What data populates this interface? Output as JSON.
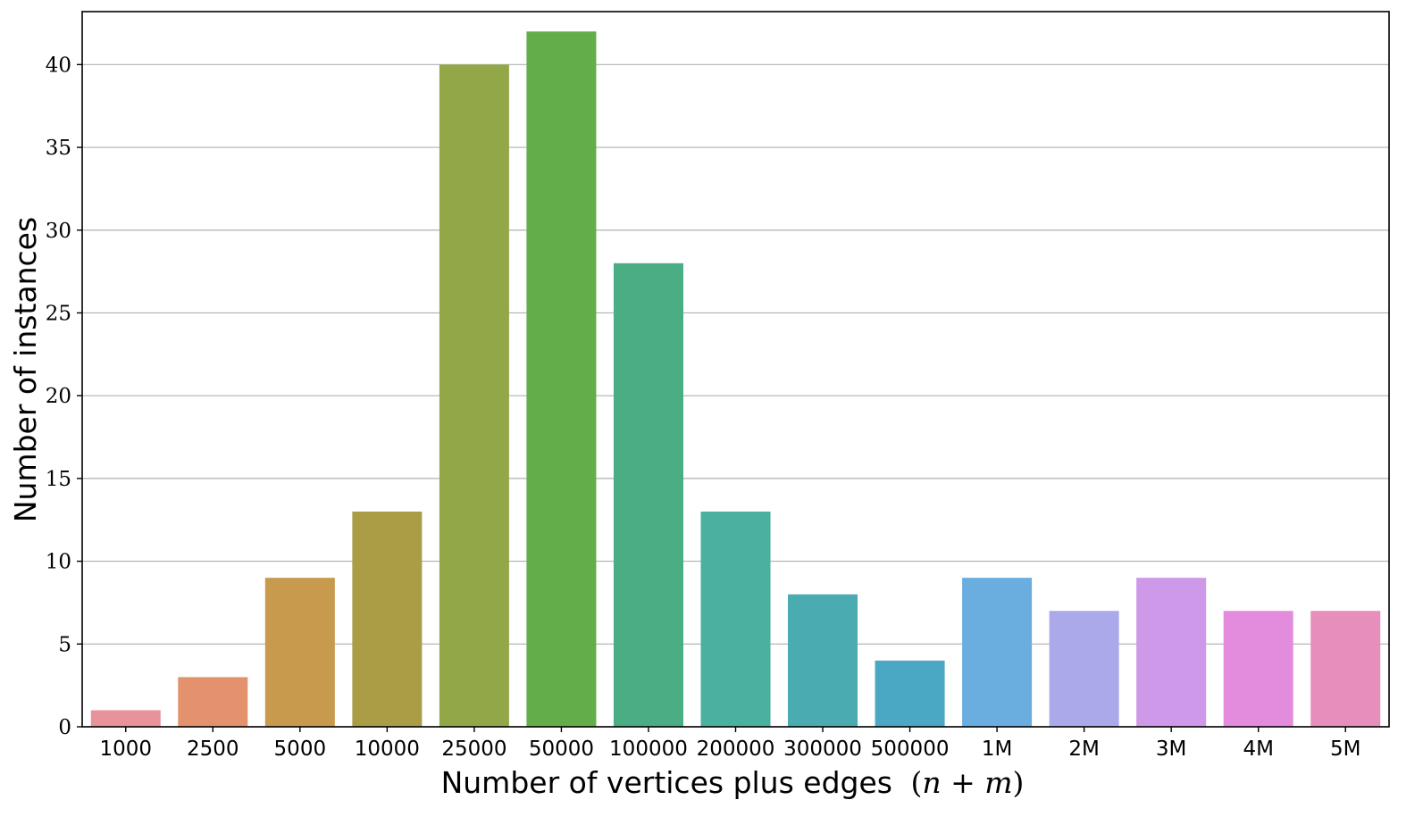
{
  "chart_data": {
    "type": "bar",
    "title": "",
    "xlabel": "Number of vertices plus edges",
    "xlabel_math": "n + m",
    "ylabel": "Number of instances",
    "ylim": [
      0,
      43.2
    ],
    "yticks": [
      0,
      5,
      10,
      15,
      20,
      25,
      30,
      35,
      40
    ],
    "grid": "horizontal",
    "categories": [
      "1000",
      "2500",
      "5000",
      "10000",
      "25000",
      "50000",
      "100000",
      "200000",
      "300000",
      "500000",
      "1M",
      "2M",
      "3M",
      "4M",
      "5M"
    ],
    "values": [
      1,
      3,
      9,
      13,
      40,
      42,
      28,
      13,
      8,
      4,
      9,
      7,
      9,
      7,
      7
    ],
    "colors": [
      "#e8939c",
      "#e3926d",
      "#c89a4e",
      "#aa9d46",
      "#92a747",
      "#63ae4a",
      "#4aad83",
      "#4ab0a0",
      "#4aabb0",
      "#4ba8c4",
      "#6aaee0",
      "#aba9ea",
      "#cd99e8",
      "#e38cdd",
      "#e68fbd"
    ]
  }
}
